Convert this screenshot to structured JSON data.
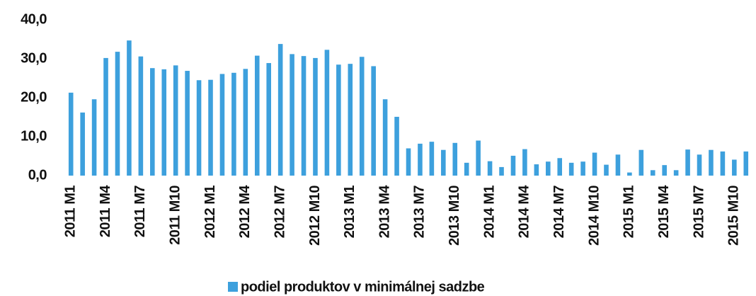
{
  "chart_data": {
    "type": "bar",
    "categories": [
      "2011 M1",
      null,
      null,
      "2011 M4",
      null,
      null,
      "2011 M7",
      null,
      null,
      "2011 M10",
      null,
      null,
      "2012 M1",
      null,
      null,
      "2012 M4",
      null,
      null,
      "2012 M7",
      null,
      null,
      "2012 M10",
      null,
      null,
      "2013 M1",
      null,
      null,
      "2013 M4",
      null,
      null,
      "2013 M7",
      null,
      null,
      "2013 M10",
      null,
      null,
      "2014 M1",
      null,
      null,
      "2014 M4",
      null,
      null,
      "2014 M7",
      null,
      null,
      "2014 M10",
      null,
      null,
      "2015 M1",
      null,
      null,
      "2015 M4",
      null,
      null,
      "2015 M7",
      null,
      null,
      "2015 M10",
      null
    ],
    "series": [
      {
        "name": "podiel produktov v minimálnej sadzbe",
        "color": "#3da0dd",
        "values": [
          21.3,
          16.2,
          19.6,
          30.2,
          31.8,
          34.7,
          30.6,
          27.6,
          27.3,
          28.3,
          26.9,
          24.5,
          24.6,
          26.1,
          26.4,
          27.4,
          30.8,
          28.9,
          33.8,
          31.2,
          30.7,
          30.2,
          32.3,
          28.5,
          28.7,
          30.5,
          28.1,
          19.6,
          15.1,
          7.0,
          8.2,
          8.7,
          6.6,
          8.4,
          3.3,
          9.0,
          3.7,
          2.2,
          5.1,
          6.8,
          2.9,
          3.6,
          4.5,
          3.3,
          3.6,
          5.9,
          2.8,
          5.4,
          0.8,
          6.6,
          1.4,
          2.7,
          1.4,
          6.7,
          5.4,
          6.6,
          6.2,
          4.1,
          6.2
        ]
      }
    ],
    "ylim": [
      0,
      40
    ],
    "yticks": [
      {
        "value": 0,
        "label": "0,0"
      },
      {
        "value": 10,
        "label": "10,0"
      },
      {
        "value": 20,
        "label": "20,0"
      },
      {
        "value": 30,
        "label": "30,0"
      },
      {
        "value": 40,
        "label": "40,0"
      }
    ],
    "legend": "bottom"
  }
}
